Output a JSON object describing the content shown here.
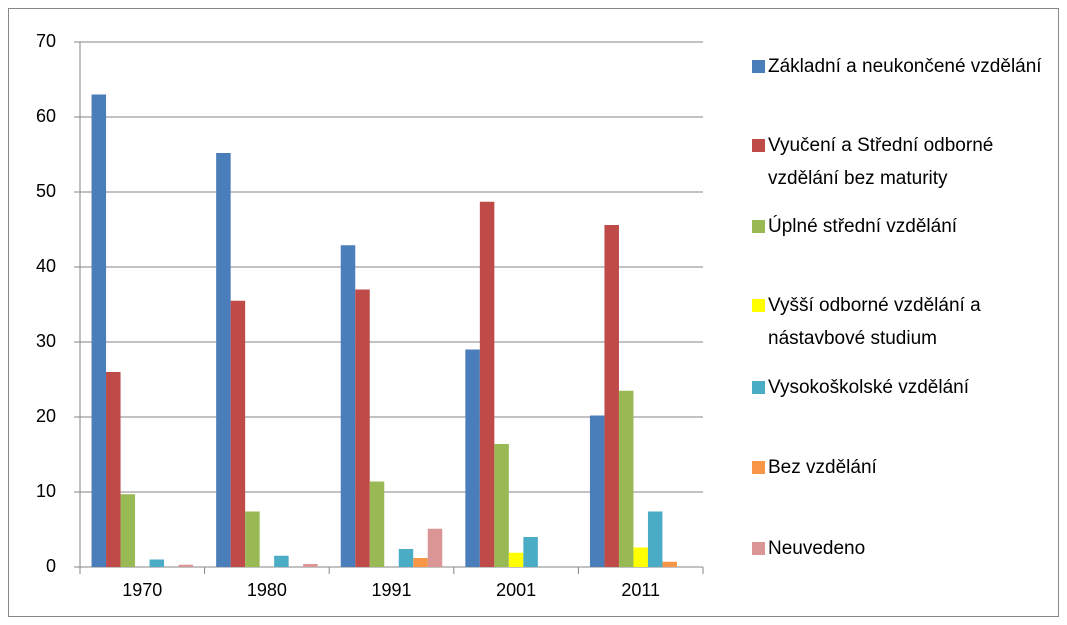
{
  "chart_data": {
    "type": "bar",
    "categories": [
      "1970",
      "1980",
      "1991",
      "2001",
      "2011"
    ],
    "series": [
      {
        "name": "Základní a neukončené vzdělání",
        "color": "#4a7ebb",
        "values": [
          63,
          55.2,
          42.9,
          29,
          20.2
        ]
      },
      {
        "name": "Vyučení a Střední odborné vzdělání bez maturity",
        "color": "#be4b48",
        "values": [
          26,
          35.5,
          37,
          48.7,
          45.6
        ]
      },
      {
        "name": "Úplné střední vzdělání",
        "color": "#98b954",
        "values": [
          9.7,
          7.4,
          11.4,
          16.4,
          23.5
        ]
      },
      {
        "name": "Vyšší odborné vzdělání a nástavbové studium",
        "color": "#ffff00",
        "values": [
          null,
          null,
          null,
          1.9,
          2.6
        ]
      },
      {
        "name": "Vysokoškolské vzdělání",
        "color": "#4bacc6",
        "values": [
          1,
          1.5,
          2.4,
          4,
          7.4
        ]
      },
      {
        "name": "Bez vzdělání",
        "color": "#f79646",
        "values": [
          null,
          null,
          1.2,
          null,
          0.7
        ]
      },
      {
        "name": "Neuvedeno",
        "color": "#d99694",
        "values": [
          0.3,
          0.4,
          5.1,
          null,
          null
        ]
      }
    ],
    "ylim": [
      0,
      70
    ],
    "yticks": [
      0,
      10,
      20,
      30,
      40,
      50,
      60,
      70
    ],
    "grid": true,
    "legend": "right"
  }
}
